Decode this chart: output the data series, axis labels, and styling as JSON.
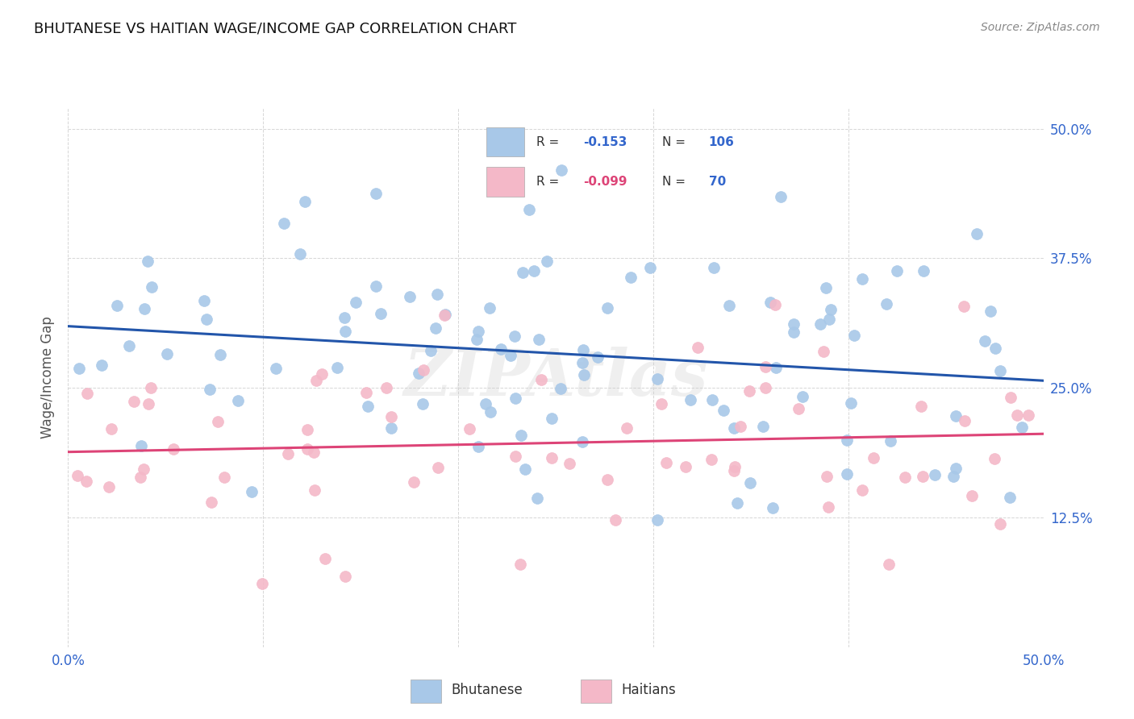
{
  "title": "BHUTANESE VS HAITIAN WAGE/INCOME GAP CORRELATION CHART",
  "source": "Source: ZipAtlas.com",
  "ylabel": "Wage/Income Gap",
  "legend_r_blue": "-0.153",
  "legend_n_blue": "106",
  "legend_r_pink": "-0.099",
  "legend_n_pink": "70",
  "blue_color": "#a8c8e8",
  "pink_color": "#f4b8c8",
  "blue_line_color": "#2255aa",
  "pink_line_color": "#dd4477",
  "blue_label_color": "#3366cc",
  "pink_label_color": "#dd4477",
  "right_tick_color": "#3366cc",
  "x_tick_color": "#3366cc",
  "watermark": "ZIPAtlas",
  "xmin": 0.0,
  "xmax": 0.5,
  "ymin": 0.0,
  "ymax": 0.52
}
